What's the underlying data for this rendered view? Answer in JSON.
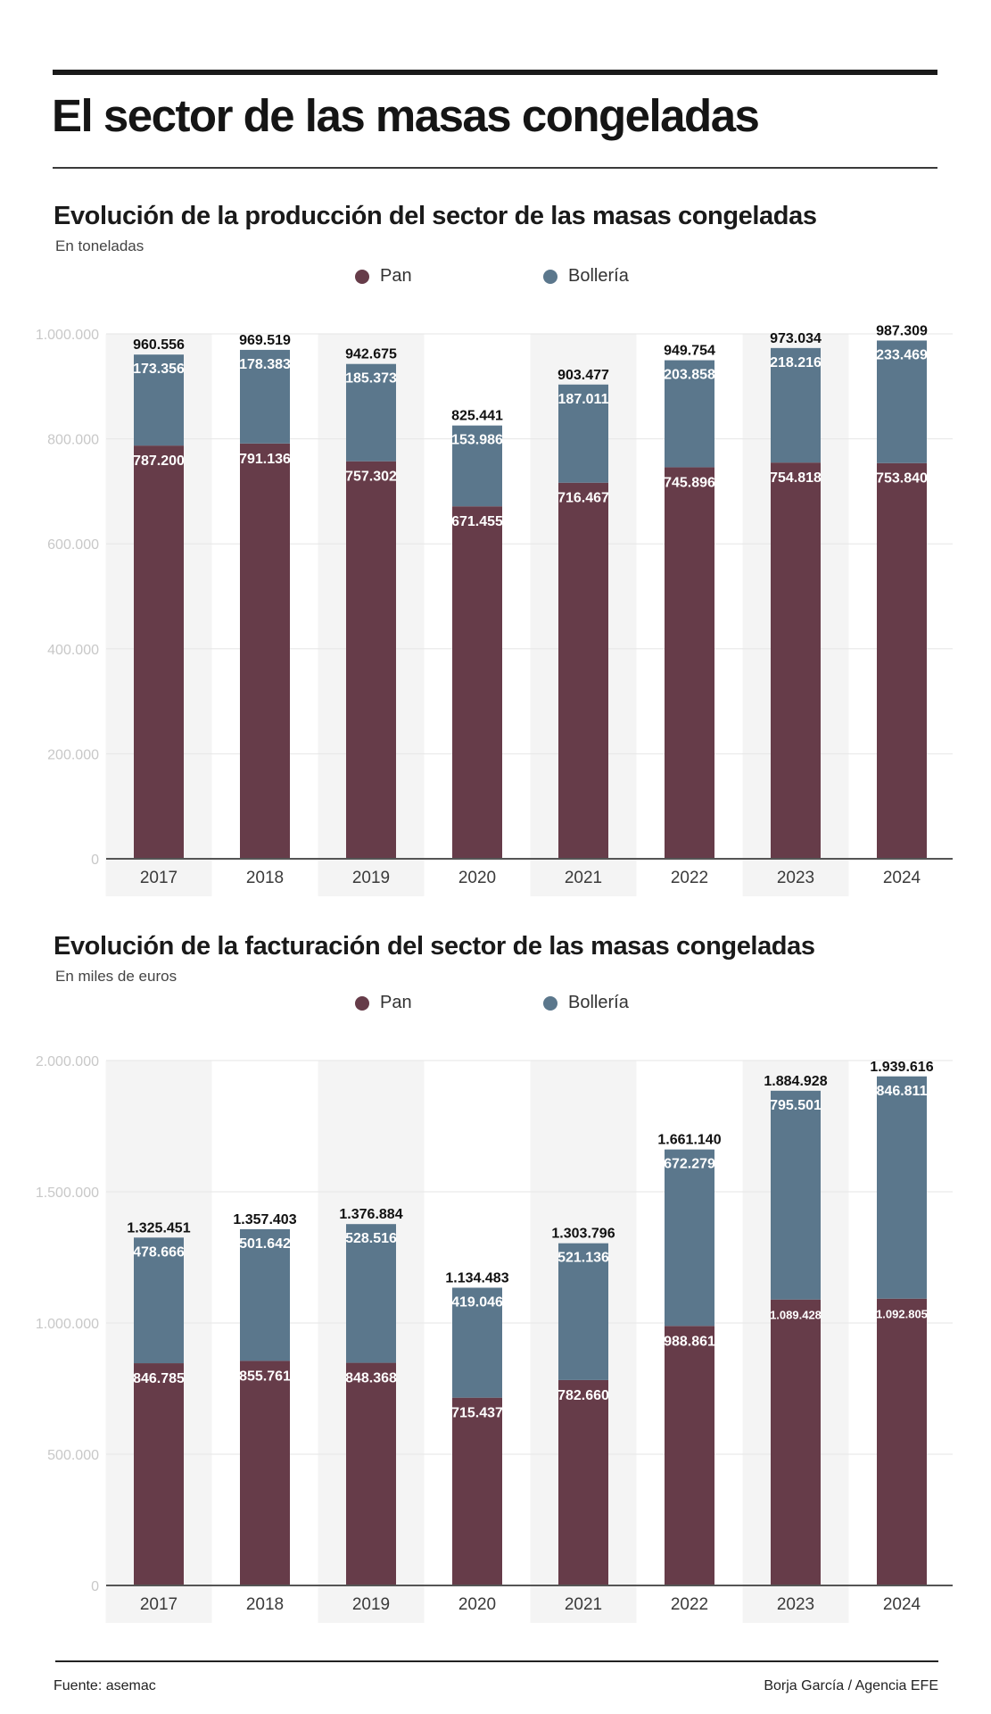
{
  "header": {
    "title": "El sector de las masas congeladas"
  },
  "colors": {
    "pan": "#663c49",
    "bolleria": "#5b778c",
    "band": "#f4f4f4",
    "grid": "#e6e6e6",
    "axis": "#555555",
    "tick_label": "#c8c8c8"
  },
  "legend": {
    "pan": "Pan",
    "bolleria": "Bollería"
  },
  "charts": [
    {
      "title": "Evolución de la producción del sector de las masas congeladas",
      "subtitle": "En toneladas"
    },
    {
      "title": "Evolución de la facturación del sector de las masas congeladas",
      "subtitle": "En miles de euros"
    }
  ],
  "chart_data": [
    {
      "type": "bar",
      "stacked": true,
      "title": "Evolución de la producción del sector de las masas congeladas",
      "subtitle": "En toneladas",
      "xlabel": "",
      "ylabel": "",
      "ylim": [
        0,
        1000000
      ],
      "yticks": [
        0,
        200000,
        400000,
        600000,
        800000,
        1000000
      ],
      "ytick_labels": [
        "0",
        "200.000",
        "400.000",
        "600.000",
        "800.000",
        "1.000.000"
      ],
      "grid": true,
      "legend_position": "top-center",
      "categories": [
        "2017",
        "2018",
        "2019",
        "2020",
        "2021",
        "2022",
        "2023",
        "2024"
      ],
      "series": [
        {
          "name": "Pan",
          "values": [
            787200,
            791136,
            757302,
            671455,
            716467,
            745896,
            754818,
            753840
          ],
          "labels": [
            "787.200",
            "791.136",
            "757.302",
            "671.455",
            "716.467",
            "745.896",
            "754.818",
            "753.840"
          ]
        },
        {
          "name": "Bollería",
          "values": [
            173356,
            178383,
            185373,
            153986,
            187011,
            203858,
            218216,
            233469
          ],
          "labels": [
            "173.356",
            "178.383",
            "185.373",
            "153.986",
            "187.011",
            "203.858",
            "218.216",
            "233.469"
          ]
        }
      ],
      "totals": [
        960556,
        969519,
        942675,
        825441,
        903477,
        949754,
        973034,
        987309
      ],
      "total_labels": [
        "960.556",
        "969.519",
        "942.675",
        "825.441",
        "903.477",
        "949.754",
        "973.034",
        "987.309"
      ]
    },
    {
      "type": "bar",
      "stacked": true,
      "title": "Evolución de la facturación del sector de las masas congeladas",
      "subtitle": "En miles de euros",
      "xlabel": "",
      "ylabel": "",
      "ylim": [
        0,
        2000000
      ],
      "yticks": [
        0,
        500000,
        1000000,
        1500000,
        2000000
      ],
      "ytick_labels": [
        "0",
        "500.000",
        "1.000.000",
        "1.500.000",
        "2.000.000"
      ],
      "grid": true,
      "legend_position": "top-center",
      "categories": [
        "2017",
        "2018",
        "2019",
        "2020",
        "2021",
        "2022",
        "2023",
        "2024"
      ],
      "series": [
        {
          "name": "Pan",
          "values": [
            846785,
            855761,
            848368,
            715437,
            782660,
            988861,
            1089428,
            1092805
          ],
          "labels": [
            "846.785",
            "855.761",
            "848.368",
            "715.437",
            "782.660",
            "988.861",
            "1.089.428",
            "1.092.805"
          ]
        },
        {
          "name": "Bollería",
          "values": [
            478666,
            501642,
            528516,
            419046,
            521136,
            672279,
            795501,
            846811
          ],
          "labels": [
            "478.666",
            "501.642",
            "528.516",
            "419.046",
            "521.136",
            "672.279",
            "795.501",
            "846.811"
          ]
        }
      ],
      "totals": [
        1325451,
        1357403,
        1376884,
        1134483,
        1303796,
        1661140,
        1884928,
        1939616
      ],
      "total_labels": [
        "1.325.451",
        "1.357.403",
        "1.376.884",
        "1.134.483",
        "1.303.796",
        "1.661.140",
        "1.884.928",
        "1.939.616"
      ]
    }
  ],
  "footer": {
    "source": "Fuente: asemac",
    "credit": "Borja García / Agencia EFE"
  }
}
